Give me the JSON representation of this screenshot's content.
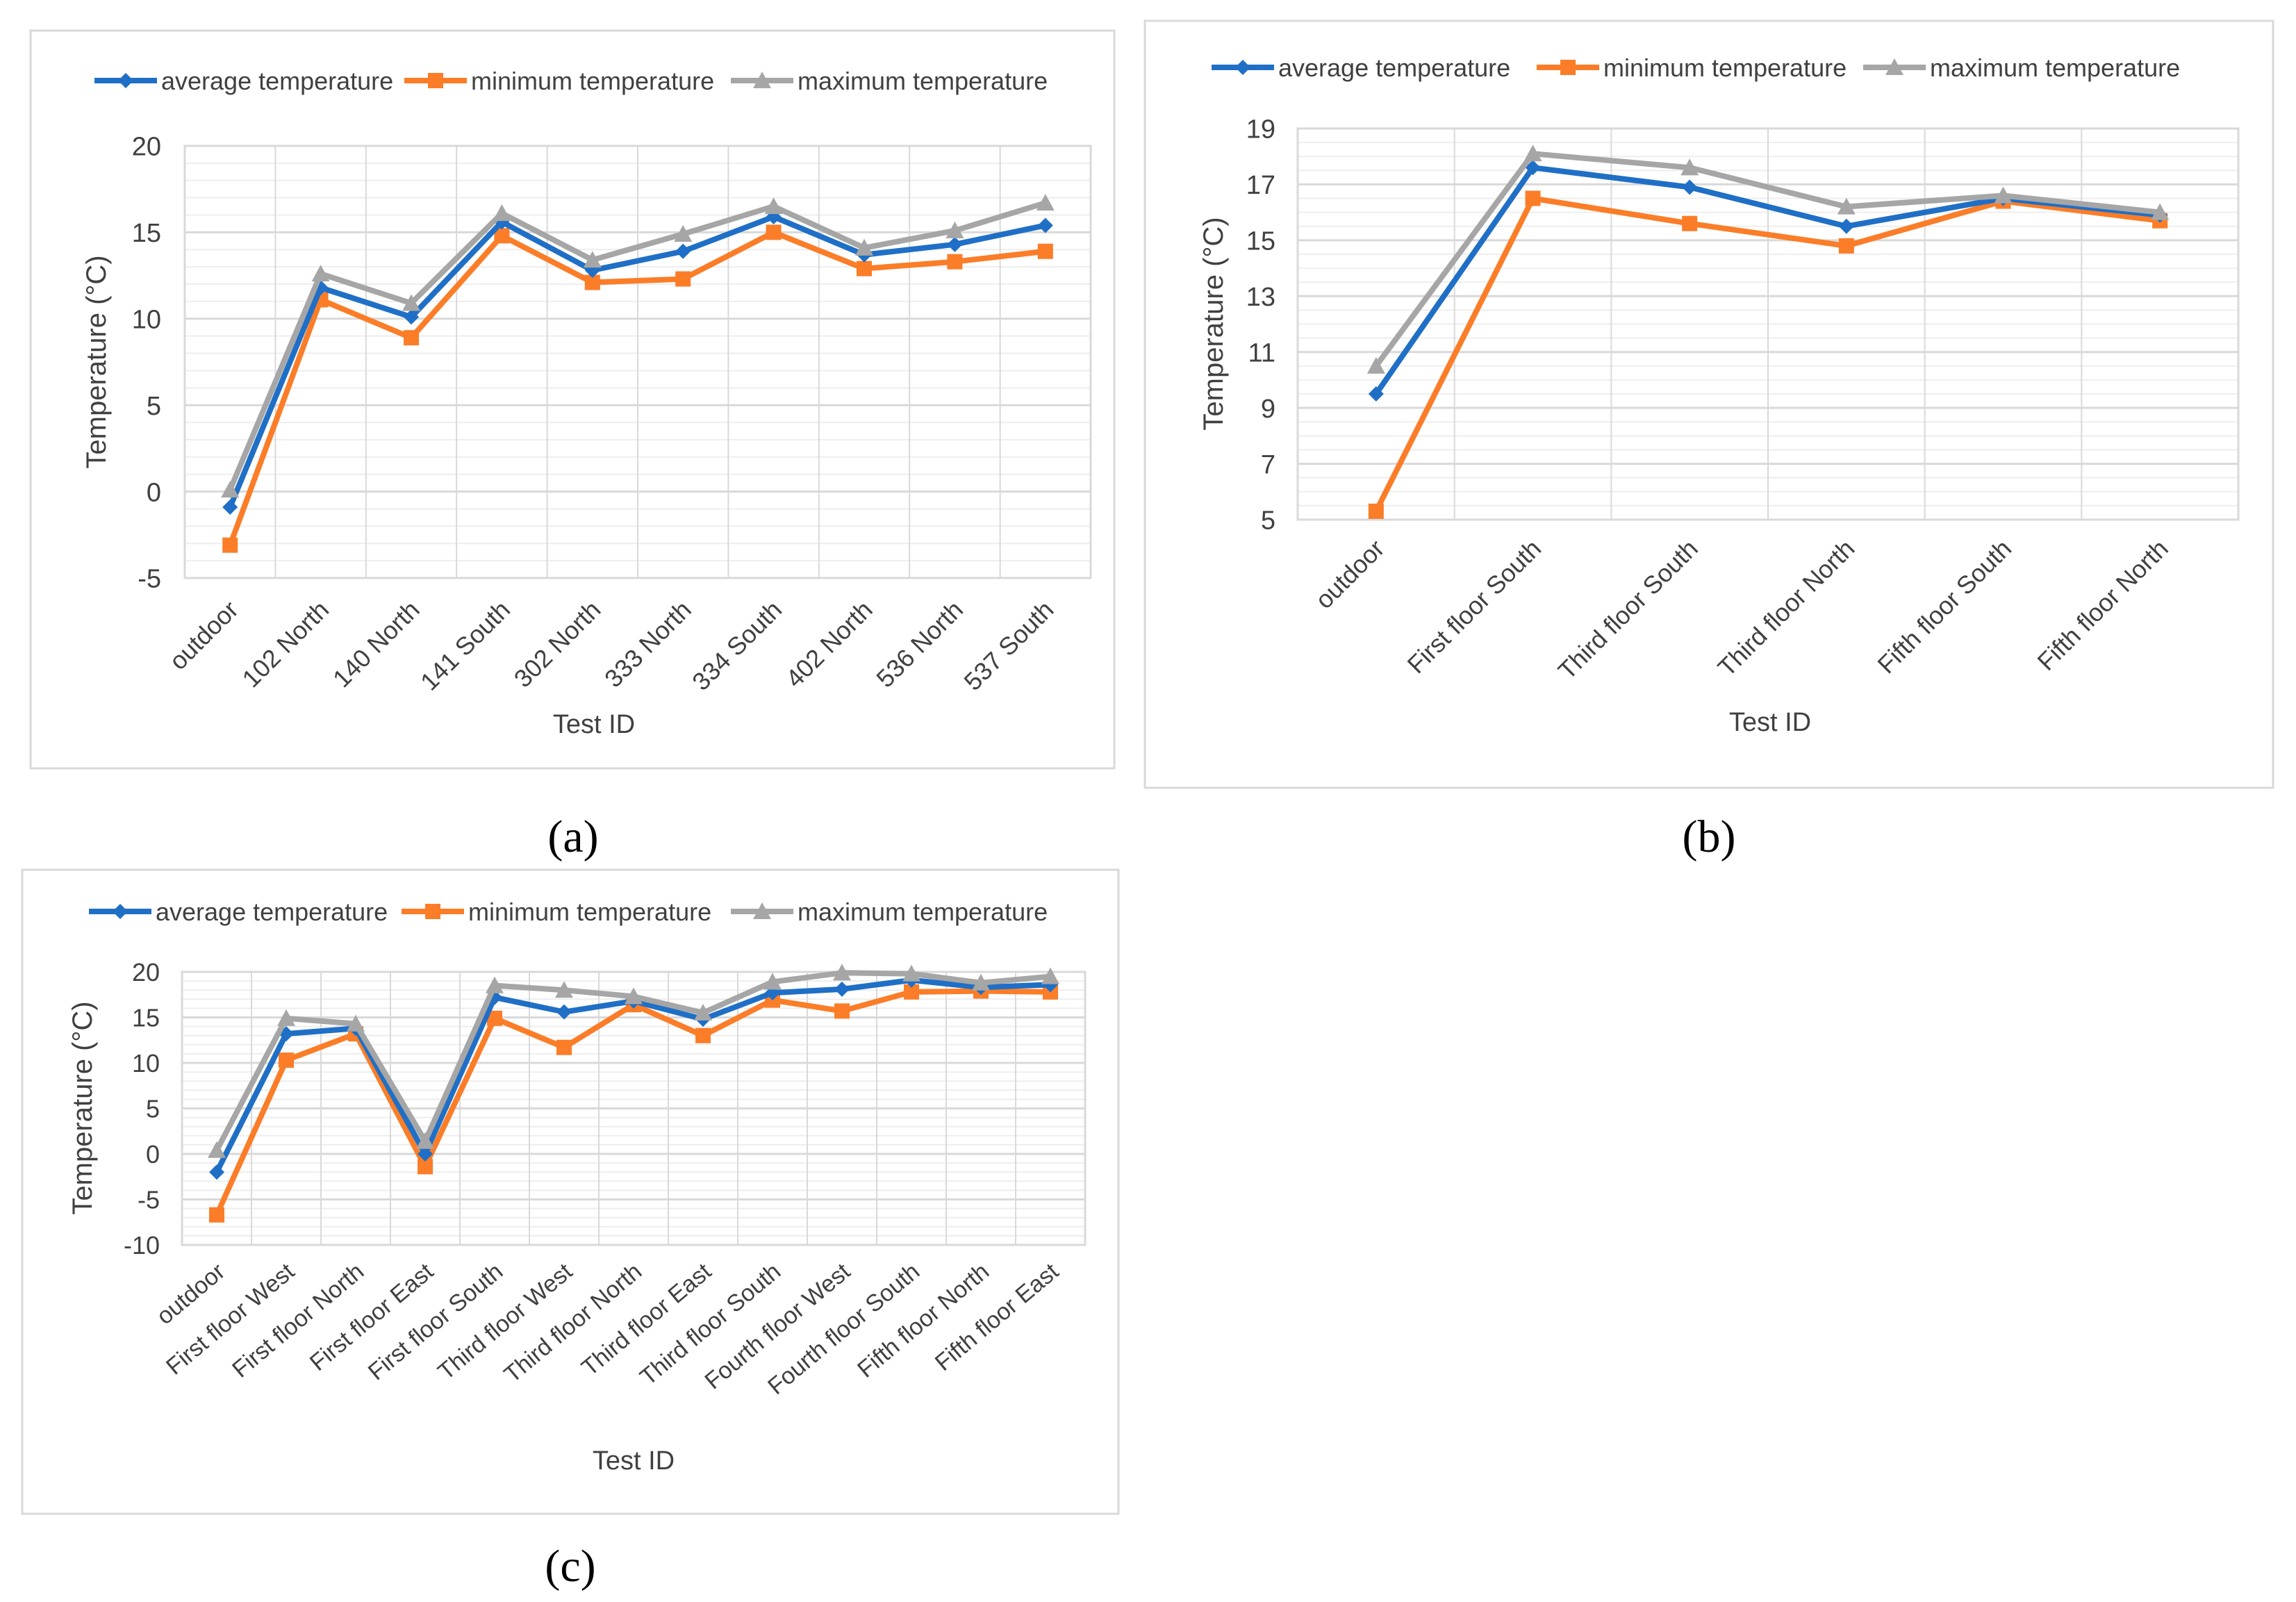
{
  "colors": {
    "average": "#1f6fc6",
    "minimum": "#fb7d28",
    "maximum": "#a6a6a6",
    "grid_major": "#d9d9d9",
    "grid_minor": "#eeeeee",
    "frame": "#d9d9d9",
    "text": "#404040"
  },
  "chart_data": [
    {
      "type": "line",
      "panel_label": "(a)",
      "panel_letter": "a",
      "xlabel": "Test ID",
      "ylabel": "Temperature (°C)",
      "categories": [
        "outdoor",
        "102 North",
        "140 North",
        "141 South",
        "302 North",
        "333 North",
        "334 South",
        "402 North",
        "536 North",
        "537 South"
      ],
      "ylim": [
        -5,
        20
      ],
      "yticks": [
        -5,
        0,
        5,
        10,
        15,
        20
      ],
      "grid": true,
      "legend_position": "top",
      "series": [
        {
          "name": "average temperature",
          "marker": "diamond",
          "values": [
            -0.9,
            11.8,
            10.1,
            15.6,
            12.8,
            13.9,
            15.9,
            13.7,
            14.3,
            15.4
          ]
        },
        {
          "name": "minimum temperature",
          "marker": "square",
          "values": [
            -3.1,
            11.1,
            8.9,
            14.8,
            12.1,
            12.3,
            15.0,
            12.9,
            13.3,
            13.9
          ]
        },
        {
          "name": "maximum temperature",
          "marker": "triangle",
          "values": [
            0.1,
            12.6,
            10.9,
            16.1,
            13.4,
            14.9,
            16.5,
            14.1,
            15.1,
            16.7
          ]
        }
      ]
    },
    {
      "type": "line",
      "panel_label": "(b)",
      "panel_letter": "b",
      "xlabel": "Test ID",
      "ylabel": "Temperature (°C)",
      "categories": [
        "outdoor",
        "First floor South",
        "Third floor South",
        "Third floor North",
        "Fifth floor South",
        "Fifth floor North"
      ],
      "ylim": [
        5,
        19
      ],
      "yticks": [
        5,
        7,
        9,
        11,
        13,
        15,
        17,
        19
      ],
      "grid": true,
      "legend_position": "top",
      "series": [
        {
          "name": "average temperature",
          "marker": "diamond",
          "values": [
            9.5,
            17.6,
            16.9,
            15.5,
            16.5,
            15.9
          ]
        },
        {
          "name": "minimum temperature",
          "marker": "square",
          "values": [
            5.3,
            16.5,
            15.6,
            14.8,
            16.4,
            15.7
          ]
        },
        {
          "name": "maximum temperature",
          "marker": "triangle",
          "values": [
            10.5,
            18.1,
            17.6,
            16.2,
            16.6,
            16.0
          ]
        }
      ]
    },
    {
      "type": "line",
      "panel_label": "(c)",
      "panel_letter": "c",
      "xlabel": "Test ID",
      "ylabel": "Temperature (°C)",
      "categories": [
        "outdoor",
        "First floor West",
        "First floor North",
        "First floor East",
        "First floor South",
        "Third floor West",
        "Third floor North",
        "Third floor East",
        "Third floor South",
        "Fourth floor West",
        "Fourth floor South",
        "Fifth floor North",
        "Fifth floor East"
      ],
      "ylim": [
        -10,
        20
      ],
      "yticks": [
        -10,
        -5,
        0,
        5,
        10,
        15,
        20
      ],
      "grid": true,
      "legend_position": "top",
      "series": [
        {
          "name": "average temperature",
          "marker": "diamond",
          "values": [
            -2.0,
            13.2,
            13.8,
            0.0,
            17.2,
            15.6,
            16.8,
            14.8,
            17.7,
            18.1,
            19.1,
            18.3,
            18.6
          ]
        },
        {
          "name": "minimum temperature",
          "marker": "square",
          "values": [
            -6.7,
            10.3,
            13.2,
            -1.4,
            14.9,
            11.7,
            16.4,
            13.0,
            16.9,
            15.7,
            17.8,
            17.9,
            17.8
          ]
        },
        {
          "name": "maximum temperature",
          "marker": "triangle",
          "values": [
            0.4,
            14.9,
            14.3,
            1.4,
            18.5,
            18.0,
            17.3,
            15.5,
            18.9,
            19.9,
            19.8,
            18.8,
            19.5
          ]
        }
      ]
    }
  ]
}
